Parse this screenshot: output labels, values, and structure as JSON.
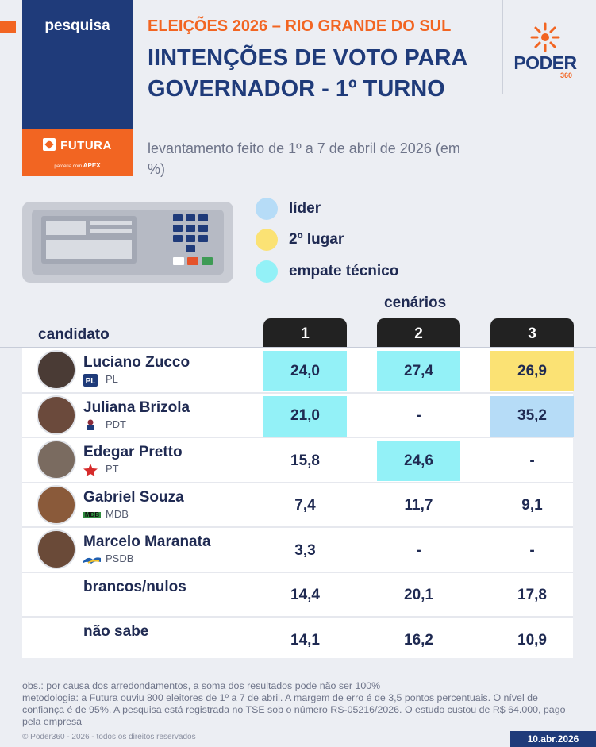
{
  "header": {
    "pesquisa_label": "pesquisa",
    "futura_label": "FUTURA",
    "futura_sub_prefix": "parceria com",
    "futura_sub_brand": "APEX",
    "kicker": "ELEIÇÕES 2026 – RIO GRANDE DO SUL",
    "title": "IINTENÇÕES DE VOTO PARA GOVERNADOR - 1º TURNO",
    "subtitle": "levantamento feito de 1º a 7 de abril de 2026 (em %)",
    "brand": "PODER",
    "brand_suffix": "360"
  },
  "legend": [
    {
      "label": "líder",
      "color": "#b6dcf7"
    },
    {
      "label": "2º lugar",
      "color": "#fbe274"
    },
    {
      "label": "empate técnico",
      "color": "#93f1f7"
    }
  ],
  "table_labels": {
    "scenarios_title": "cenários",
    "candidate_header": "candidato",
    "scenario_headers": [
      "1",
      "2",
      "3"
    ]
  },
  "chart_data": {
    "type": "table",
    "title": "IINTENÇÕES DE VOTO PARA GOVERNADOR - 1º TURNO",
    "subtitle": "levantamento feito de 1º a 7 de abril de 2026 (em %)",
    "columns": [
      "1",
      "2",
      "3"
    ],
    "rows": [
      {
        "name": "Luciano Zucco",
        "party": "PL",
        "values": [
          "24,0",
          "27,4",
          "26,9"
        ],
        "highlight": [
          "tie",
          "tie",
          "second"
        ]
      },
      {
        "name": "Juliana Brizola",
        "party": "PDT",
        "values": [
          "21,0",
          "-",
          "35,2"
        ],
        "highlight": [
          "tie",
          "",
          "leader"
        ]
      },
      {
        "name": "Edegar Pretto",
        "party": "PT",
        "values": [
          "15,8",
          "24,6",
          "-"
        ],
        "highlight": [
          "",
          "tie",
          ""
        ]
      },
      {
        "name": "Gabriel Souza",
        "party": "MDB",
        "values": [
          "7,4",
          "11,7",
          "9,1"
        ],
        "highlight": [
          "",
          "",
          ""
        ]
      },
      {
        "name": "Marcelo Maranata",
        "party": "PSDB",
        "values": [
          "3,3",
          "-",
          "-"
        ],
        "highlight": [
          "",
          "",
          ""
        ]
      },
      {
        "name": "brancos/nulos",
        "party": "",
        "values": [
          "14,4",
          "20,1",
          "17,8"
        ],
        "highlight": [
          "",
          "",
          ""
        ]
      },
      {
        "name": "não sabe",
        "party": "",
        "values": [
          "14,1",
          "16,2",
          "10,9"
        ],
        "highlight": [
          "",
          "",
          ""
        ]
      }
    ]
  },
  "notes": {
    "line1": "obs.: por causa dos arredondamentos, a soma dos resultados pode não ser 100%",
    "line2": "metodologia: a Futura ouviu 800 eleitores de 1º a 7 de abril. A margem de erro é de 3,5 pontos percentuais. O nível de confiança é de 95%. A pesquisa está registrada no TSE sob o número RS-05216/2026. O estudo custou de R$ 64.000, pago pela empresa"
  },
  "footer": {
    "copyright": "© Poder360 - 2026 - todos os direitos reservados",
    "date": "10.abr.2026"
  }
}
